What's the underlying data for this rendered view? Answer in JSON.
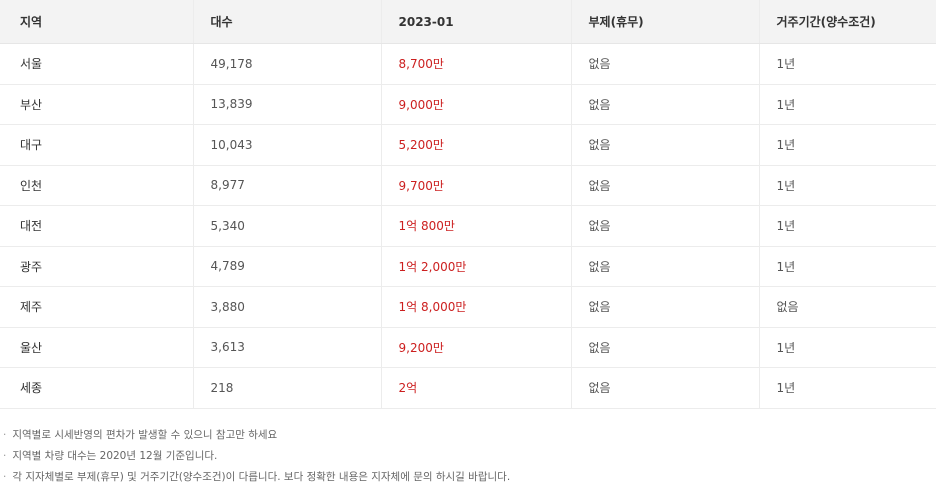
{
  "table": {
    "headers": [
      "지역",
      "대수",
      "2023-01",
      "부제(휴무)",
      "거주기간(양수조건)"
    ],
    "rows": [
      {
        "region": "서울",
        "count": "49,178",
        "price": "8,700만",
        "rotation": "없음",
        "residency": "1년"
      },
      {
        "region": "부산",
        "count": "13,839",
        "price": "9,000만",
        "rotation": "없음",
        "residency": "1년"
      },
      {
        "region": "대구",
        "count": "10,043",
        "price": "5,200만",
        "rotation": "없음",
        "residency": "1년"
      },
      {
        "region": "인천",
        "count": "8,977",
        "price": "9,700만",
        "rotation": "없음",
        "residency": "1년"
      },
      {
        "region": "대전",
        "count": "5,340",
        "price": "1억 800만",
        "rotation": "없음",
        "residency": "1년"
      },
      {
        "region": "광주",
        "count": "4,789",
        "price": "1억 2,000만",
        "rotation": "없음",
        "residency": "1년"
      },
      {
        "region": "제주",
        "count": "3,880",
        "price": "1억 8,000만",
        "rotation": "없음",
        "residency": "없음"
      },
      {
        "region": "울산",
        "count": "3,613",
        "price": "9,200만",
        "rotation": "없음",
        "residency": "1년"
      },
      {
        "region": "세종",
        "count": "218",
        "price": "2억",
        "rotation": "없음",
        "residency": "1년"
      }
    ]
  },
  "colors": {
    "header_bg": "#f3f3f3",
    "price_red": "#cc1f1f",
    "border": "#ececec"
  },
  "notes": {
    "bullet": "·",
    "items": [
      "지역별로 시세반영의 편차가 발생할 수 있으니 참고만 하세요",
      "지역별 차량 대수는 2020년 12월 기준입니다.",
      "각 지자체별로 부제(휴무) 및 거주기간(양수조건)이 다릅니다.  보다 정확한 내용은 지자체에 문의 하시길 바랍니다."
    ]
  }
}
